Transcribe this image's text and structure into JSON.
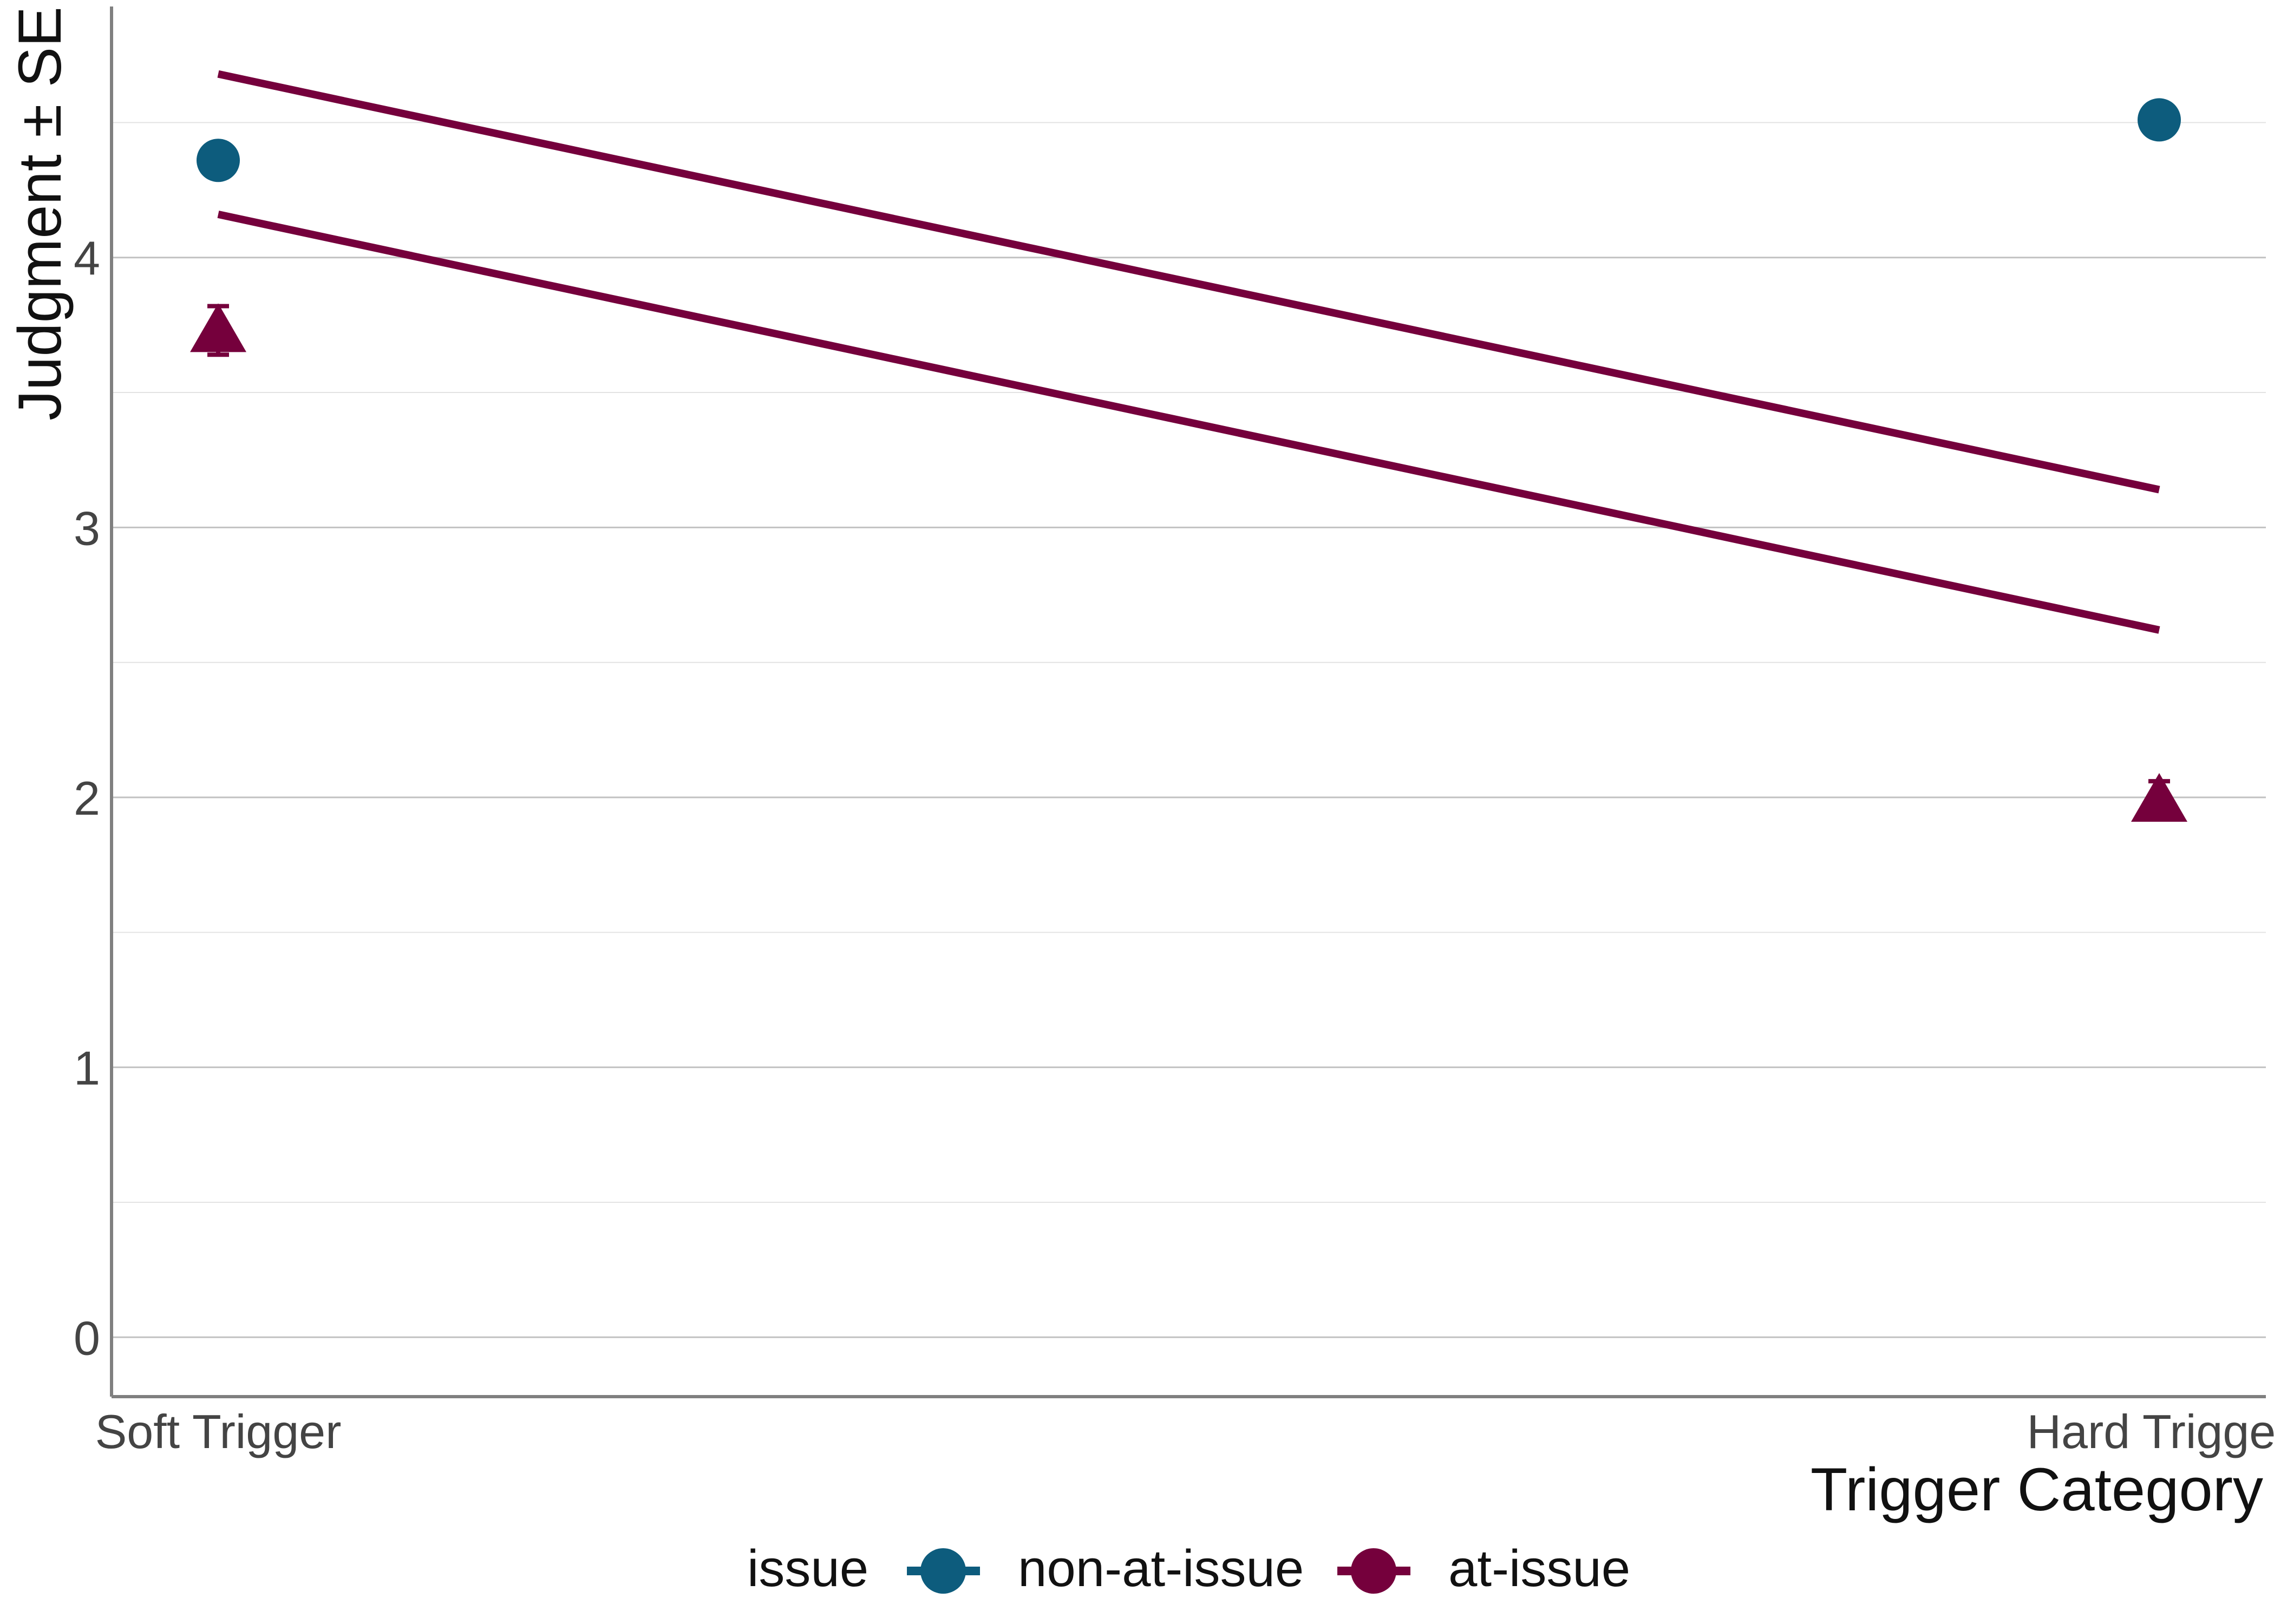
{
  "chart_data": {
    "type": "scatter",
    "categories": [
      "Soft Trigger",
      "Hard Trigger"
    ],
    "xlabel": "Trigger Category",
    "ylabel": "Judgment ± SE",
    "ylim": [
      -0.22,
      4.93
    ],
    "yticks": [
      0,
      1,
      2,
      3,
      4
    ],
    "grid": true,
    "series": [
      {
        "name": "non-at-issue",
        "color": "#0d5c7d",
        "shape": "circle",
        "values": [
          4.36,
          4.51
        ],
        "se": [
          0.06,
          0.06
        ]
      },
      {
        "name": "at-issue",
        "color": "#75003c",
        "shape": "triangle",
        "values": [
          3.73,
          1.99
        ],
        "se": [
          0.09,
          0.07
        ]
      }
    ],
    "lines": [
      {
        "color": "#75003c",
        "y": [
          4.68,
          3.14
        ]
      },
      {
        "color": "#75003c",
        "y": [
          4.16,
          2.62
        ]
      }
    ],
    "legend": {
      "title": "issue",
      "placement": "bottom",
      "entries": [
        "non-at-issue",
        "at-issue"
      ]
    }
  }
}
